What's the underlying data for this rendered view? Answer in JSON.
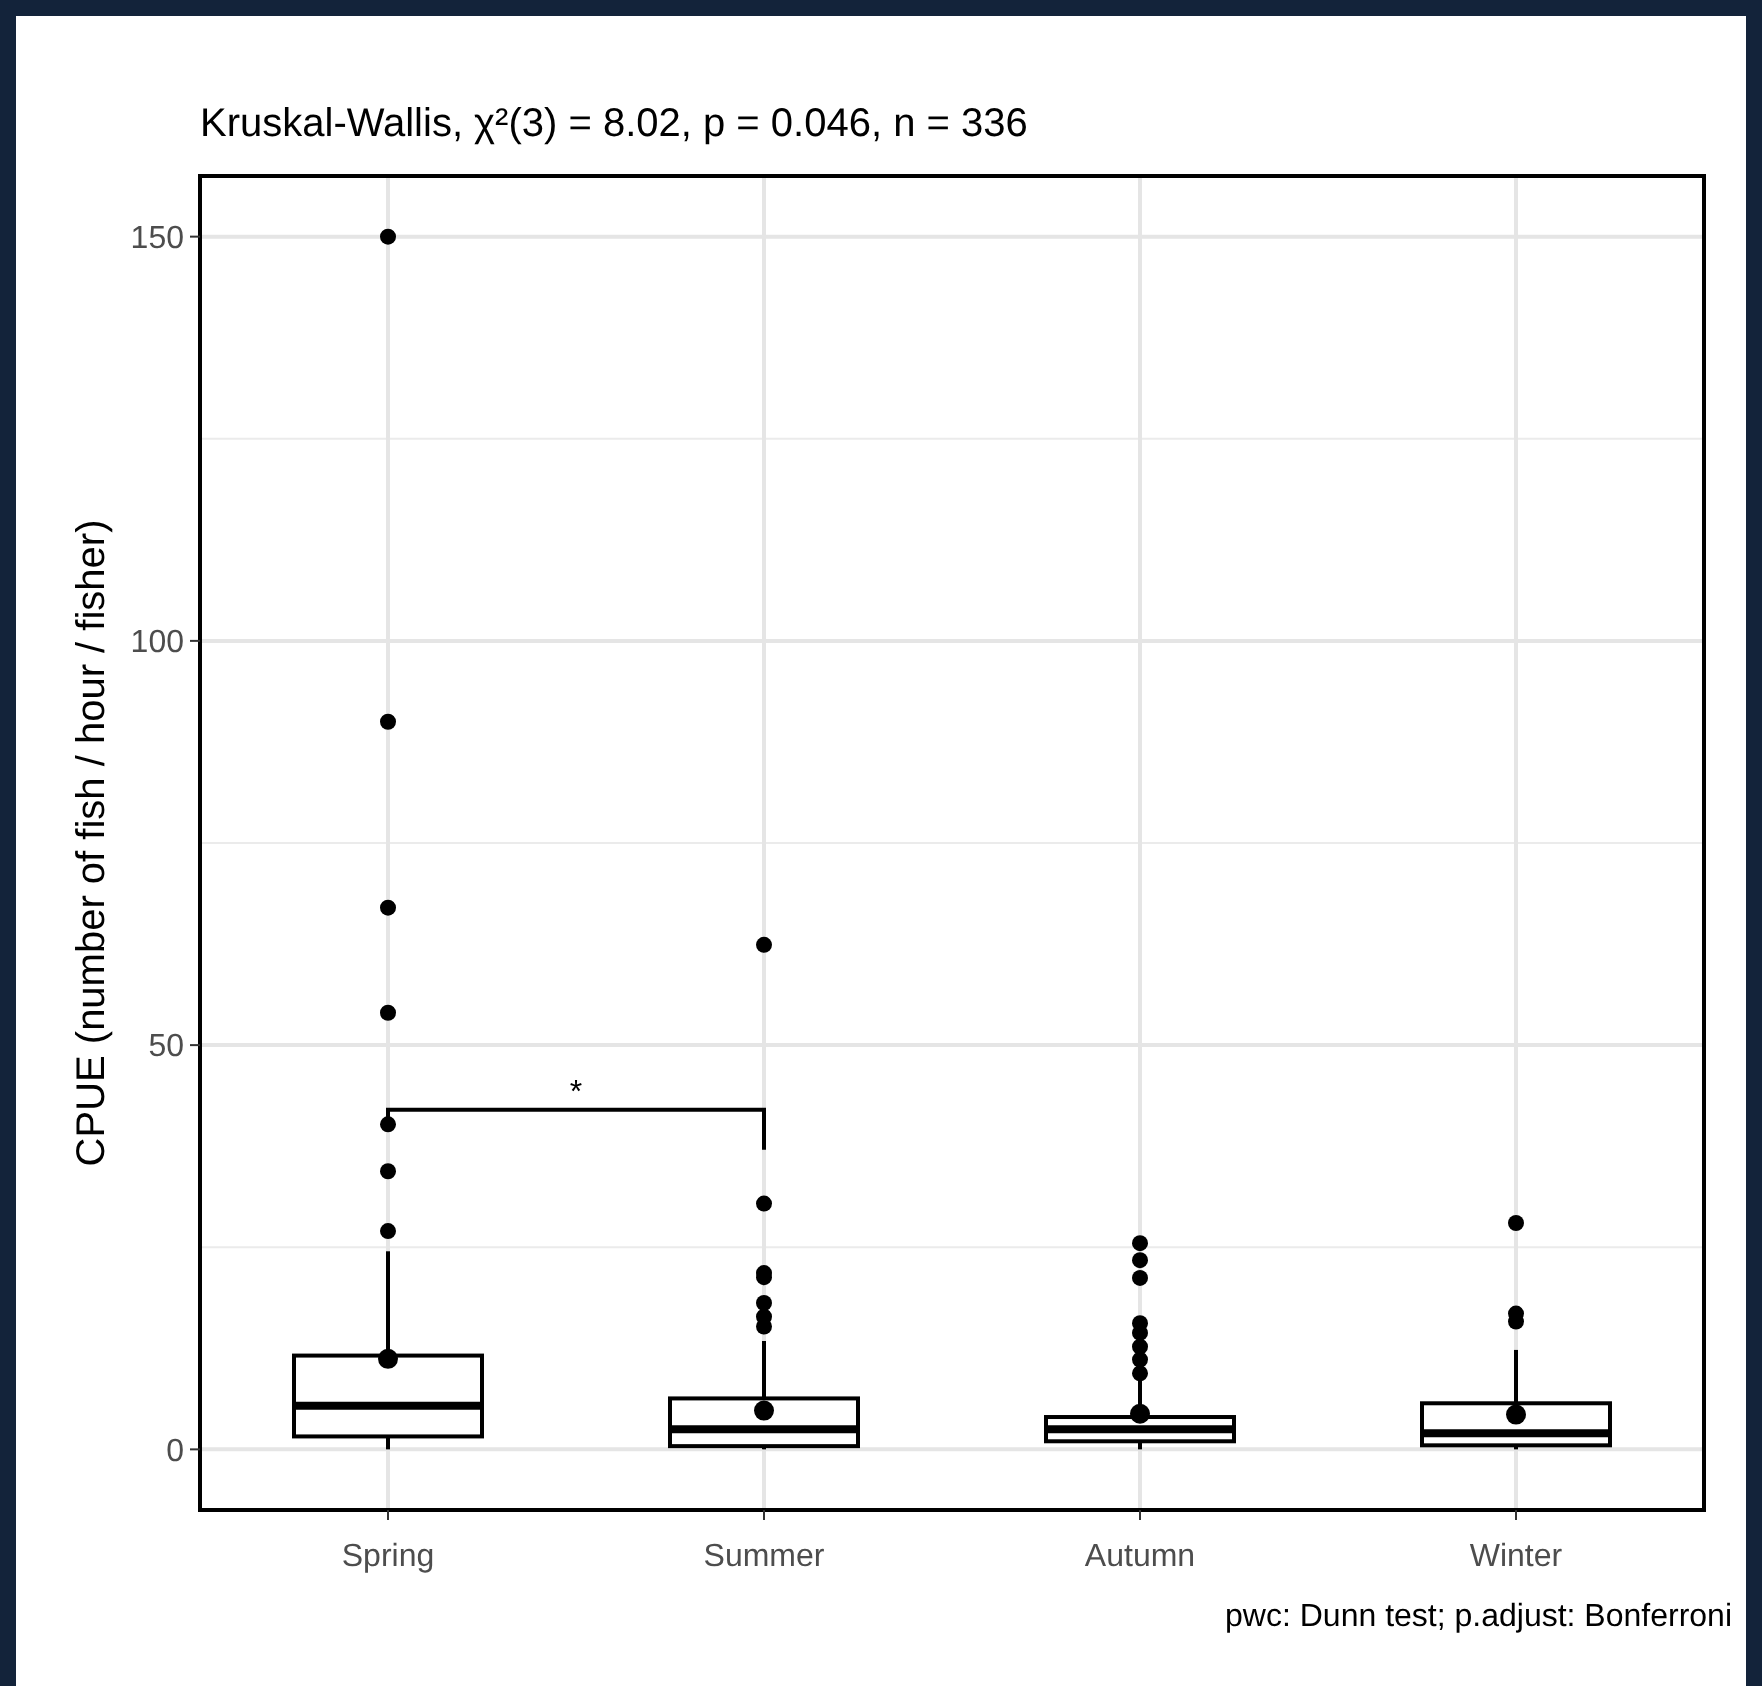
{
  "chart_data": {
    "type": "box",
    "title": "Kruskal-Wallis, χ²(3) = 8.02, p = 0.046, n = 336",
    "ylabel": "CPUE (number of fish / hour / fisher)",
    "categories": [
      "Spring",
      "Summer",
      "Autumn",
      "Winter"
    ],
    "boxes": [
      {
        "low": 0,
        "q1": 1.6,
        "median": 5.4,
        "q3": 11.6,
        "high": 24.5,
        "mean": 11.2,
        "outliers": [
          150,
          90,
          67,
          54,
          40.2,
          34.4,
          27
        ]
      },
      {
        "low": 0,
        "q1": 0.4,
        "median": 2.5,
        "q3": 6.3,
        "high": 13.4,
        "mean": 4.8,
        "outliers": [
          62.4,
          30.4,
          21.8,
          21.3,
          18.1,
          16.4,
          15.2
        ]
      },
      {
        "low": 0,
        "q1": 1.0,
        "median": 2.5,
        "q3": 4.0,
        "high": 8.7,
        "mean": 4.4,
        "outliers": [
          25.5,
          23.4,
          21.2,
          15.6,
          14.4,
          12.7,
          11.1,
          9.4
        ]
      },
      {
        "low": 0,
        "q1": 0.5,
        "median": 2.0,
        "q3": 5.7,
        "high": 12.3,
        "mean": 4.3,
        "outliers": [
          28,
          16.8,
          15.8
        ]
      }
    ],
    "ylim": [
      -7.5,
      157.5
    ],
    "yticks": [
      0,
      50,
      100,
      150
    ],
    "grid": true,
    "annotations": [
      "*",
      "pwc: Dunn test; p.adjust: Bonferroni"
    ]
  }
}
